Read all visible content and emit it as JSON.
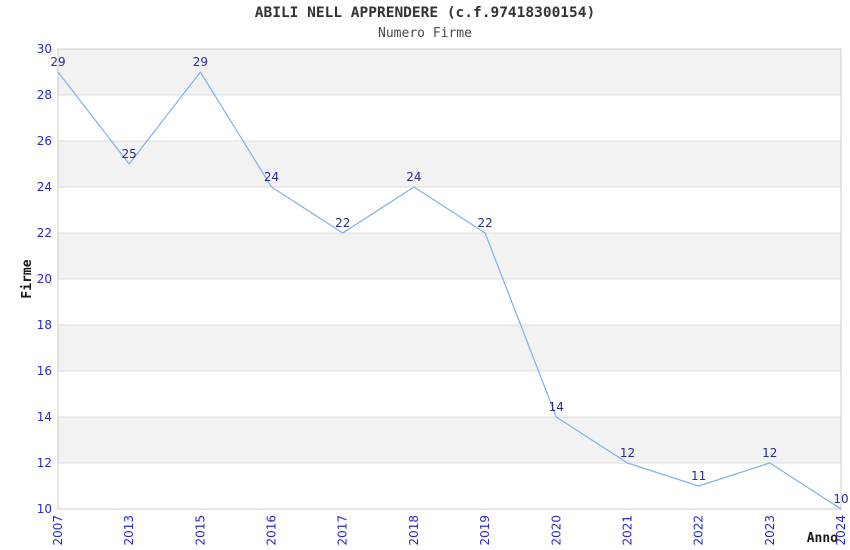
{
  "header": {
    "title": "ABILI NELL APPRENDERE (c.f.97418300154)",
    "subtitle": "Numero Firme"
  },
  "chart_data": {
    "type": "line",
    "title": "ABILI NELL APPRENDERE (c.f.97418300154)",
    "subtitle": "Numero Firme",
    "categories": [
      "2007",
      "2013",
      "2015",
      "2016",
      "2017",
      "2018",
      "2019",
      "2020",
      "2021",
      "2022",
      "2023",
      "2024"
    ],
    "values": [
      29,
      25,
      29,
      24,
      22,
      24,
      22,
      14,
      12,
      11,
      12,
      10
    ],
    "xlabel": "Anno",
    "ylabel": "Firme",
    "ylim": [
      10,
      30
    ],
    "ytick_step": 2,
    "yticks": [
      10,
      12,
      14,
      16,
      18,
      20,
      22,
      24,
      26,
      28,
      30
    ],
    "grid": "horizontal-alternating-bands",
    "legend": "none",
    "point_labels_shown": true,
    "x_tick_rotation_deg": -90,
    "colors": {
      "line": "#7FB2E8",
      "band": "#F2F2F2",
      "grid": "#DCDCDC",
      "plot_border": "#CCCCCC",
      "tick_label": "#2727CC",
      "point_label": "#2B2B8C",
      "axis_title": "#1A1A1A",
      "title": "#333333",
      "subtitle": "#4A4A4A",
      "background": "#FFFFFF"
    }
  }
}
